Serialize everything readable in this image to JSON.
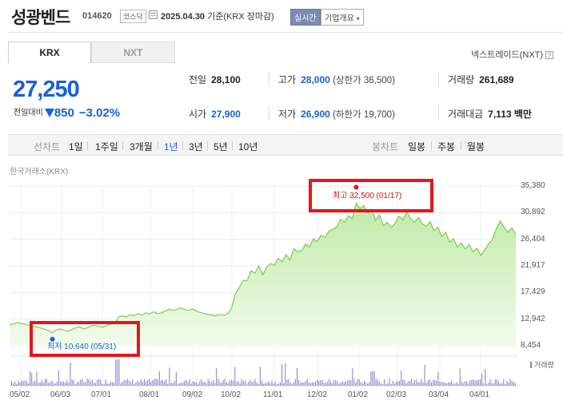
{
  "header": {
    "name": "성광벤드",
    "code": "014620",
    "market": "코스닥",
    "date": "2025.04.30",
    "basis": "기준(KRX 장마감)",
    "realtime_label": "실시간",
    "company_label": "기업개요"
  },
  "tabs": [
    "KRX",
    "NXT"
  ],
  "nextrade_label": "넥스트레이드(NXT)",
  "quote": {
    "price": "27,250",
    "change_label": "전일대비",
    "change_value": "850",
    "change_rate": "−3.02%"
  },
  "stats": {
    "prev": {
      "label": "전일",
      "value": "28,100"
    },
    "high": {
      "label": "고가",
      "value": "28,000",
      "sub": "(상한가 36,500)"
    },
    "volume": {
      "label": "거래량",
      "value": "261,689"
    },
    "open": {
      "label": "시가",
      "value": "27,900"
    },
    "low": {
      "label": "저가",
      "value": "26,900",
      "sub": "(하한가 19,700)"
    },
    "amount": {
      "label": "거래대금",
      "value": "7,113",
      "unit": "백만"
    }
  },
  "periodbar": {
    "line_label": "선차트",
    "periods": [
      "1일",
      "1주일",
      "3개월",
      "1년",
      "3년",
      "5년",
      "10년"
    ],
    "active_period": "1년",
    "candle_label": "봉차트",
    "candles": [
      "일봉",
      "주봉",
      "월봉"
    ]
  },
  "chart_source": "한국거래소(KRX)",
  "chart_data": {
    "type": "area",
    "y_ticks": [
      35380,
      30892,
      26404,
      21917,
      17429,
      12942,
      8454
    ],
    "x_ticks": [
      "05/02",
      "06/03",
      "07/01",
      "08/01",
      "09/02",
      "10/02",
      "11/01",
      "12/02",
      "01/02",
      "02/03",
      "03/04",
      "04/01"
    ],
    "high_annotation": "최고 32,500 (01/17)",
    "low_annotation": "최저 10,640 (05/31)",
    "volume_label": "거래량",
    "x": [
      0,
      4,
      8,
      12,
      16,
      20,
      22,
      24,
      26,
      28,
      30,
      32,
      34,
      36,
      38,
      40,
      42,
      44,
      46,
      48,
      50,
      52,
      54,
      56,
      58,
      60,
      62,
      64,
      66,
      68,
      70,
      72,
      74,
      76,
      78,
      80,
      82,
      84,
      86,
      88,
      90,
      92,
      94,
      96,
      98,
      100,
      102,
      104,
      106,
      108,
      110,
      112,
      114,
      116,
      118,
      120,
      122,
      124,
      126,
      128,
      130,
      132,
      134,
      136,
      138,
      140,
      142,
      144,
      146,
      148,
      150,
      152,
      154,
      156,
      158,
      160,
      162,
      164,
      166,
      168,
      170,
      172,
      174,
      176,
      178,
      180,
      182,
      184,
      186,
      188,
      190,
      192,
      194,
      196,
      198,
      200,
      202,
      204,
      206,
      208,
      210,
      212,
      214,
      216,
      218,
      220,
      222,
      224,
      226,
      228,
      230,
      232,
      234,
      236,
      238,
      240,
      242,
      244,
      246,
      248,
      250,
      252,
      254,
      256,
      258,
      260
    ],
    "close": [
      12000,
      12350,
      12100,
      11700,
      11450,
      11000,
      10640,
      11100,
      11300,
      11050,
      10900,
      11200,
      11500,
      11650,
      11300,
      11500,
      11800,
      11900,
      11700,
      11600,
      11900,
      12100,
      12200,
      13300,
      13500,
      13300,
      13700,
      13550,
      13900,
      13600,
      14000,
      13800,
      14200,
      13850,
      14000,
      14300,
      14600,
      14400,
      14600,
      14800,
      14550,
      14400,
      14650,
      14300,
      14050,
      13900,
      13700,
      13650,
      13500,
      13700,
      13600,
      13800,
      14800,
      17200,
      18300,
      19500,
      19400,
      21100,
      20700,
      21900,
      20400,
      21700,
      22300,
      22000,
      23200,
      22600,
      23800,
      22900,
      24800,
      24300,
      24500,
      25600,
      25100,
      26500,
      26000,
      27100,
      26700,
      27800,
      28100,
      28500,
      29800,
      29300,
      30400,
      29900,
      32500,
      31600,
      32100,
      30800,
      31400,
      29600,
      30500,
      28700,
      29300,
      28400,
      29100,
      30300,
      29700,
      31100,
      29800,
      29300,
      30100,
      29000,
      28600,
      29400,
      27900,
      28400,
      26900,
      27600,
      25900,
      26500,
      25100,
      25800,
      24800,
      25500,
      24300,
      24900,
      23700,
      24600,
      25600,
      26400,
      28200,
      29500,
      28400,
      27600,
      28300,
      27250
    ]
  }
}
